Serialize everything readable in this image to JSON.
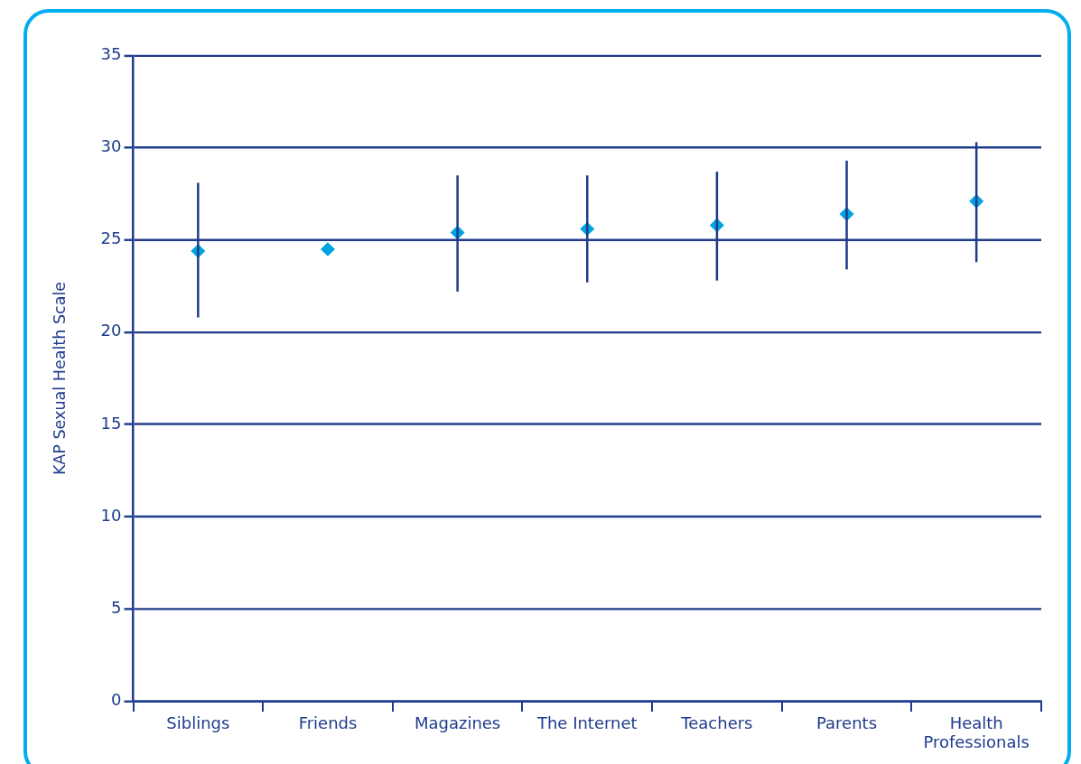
{
  "chart_data": {
    "type": "scatter",
    "ylabel": "KAP Sexual Health Scale",
    "categories": [
      "Siblings",
      "Friends",
      "Magazines",
      "The Internet",
      "Teachers",
      "Parents",
      "Health Professionals"
    ],
    "series": [
      {
        "color": "#00a3e0",
        "values": [
          24.4,
          24.5,
          25.4,
          25.6,
          25.8,
          26.4,
          27.1
        ],
        "errors": [
          [
            20.8,
            28.1
          ],
          null,
          [
            22.2,
            28.5
          ],
          [
            22.7,
            28.5
          ],
          [
            22.8,
            28.7
          ],
          [
            23.4,
            29.3
          ],
          [
            23.8,
            30.3
          ]
        ]
      }
    ],
    "ylim": [
      0,
      35
    ],
    "yticks": [
      0,
      5,
      10,
      15,
      20,
      25,
      30,
      35
    ],
    "grid": "y",
    "legend": false,
    "marker": "diamond"
  }
}
